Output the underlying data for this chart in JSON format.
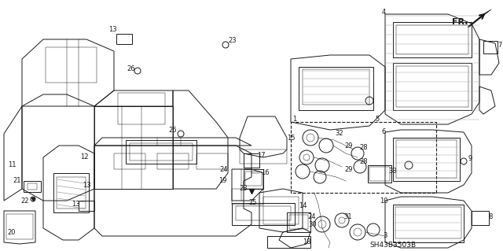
{
  "bg_color": "#ffffff",
  "line_color": "#1a1a1a",
  "fig_width": 6.4,
  "fig_height": 3.19,
  "dpi": 100,
  "diagram_code": "SH43B3503B",
  "fr_label": "FR.",
  "label_fontsize": 6.0,
  "code_fontsize": 6.5,
  "lw": 0.7,
  "lw_thin": 0.35,
  "lw_thick": 1.1
}
